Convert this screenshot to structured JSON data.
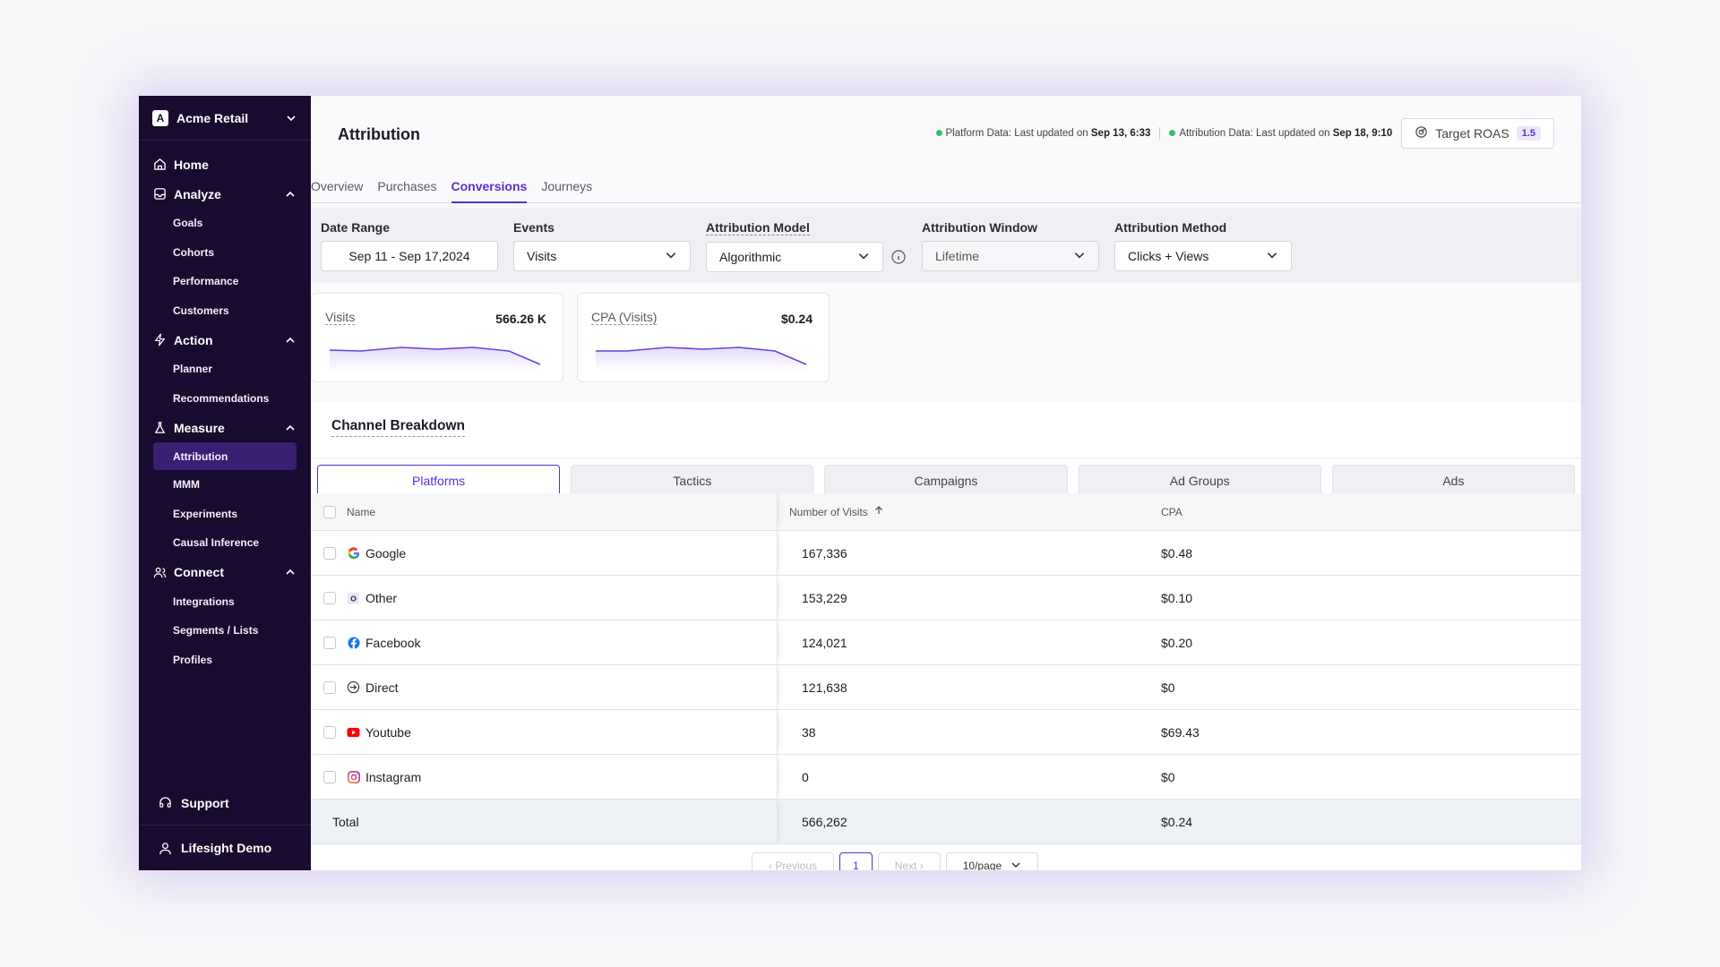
{
  "workspace": {
    "initial": "A",
    "name": "Acme Retail"
  },
  "sidebar": {
    "home": "Home",
    "analyze": {
      "label": "Analyze",
      "items": [
        "Goals",
        "Cohorts",
        "Performance",
        "Customers"
      ]
    },
    "action": {
      "label": "Action",
      "items": [
        "Planner",
        "Recommendations"
      ]
    },
    "measure": {
      "label": "Measure",
      "items": [
        "Attribution",
        "MMM",
        "Experiments",
        "Causal Inference"
      ]
    },
    "connect": {
      "label": "Connect",
      "items": [
        "Integrations",
        "Segments / Lists",
        "Profiles"
      ]
    },
    "support": "Support",
    "user": "Lifesight Demo"
  },
  "header": {
    "title": "Attribution",
    "platform_prefix": "Platform Data: Last updated on",
    "platform_date": "Sep 13, 6:33",
    "attribution_prefix": "Attribution Data: Last updated on",
    "attribution_date": "Sep 18, 9:10",
    "roas_label": "Target ROAS",
    "roas_value": "1.5"
  },
  "tabs": [
    "Overview",
    "Purchases",
    "Conversions",
    "Journeys"
  ],
  "filters": {
    "date_range": {
      "label": "Date Range",
      "value": "Sep 11 - Sep 17,2024"
    },
    "events": {
      "label": "Events",
      "value": "Visits"
    },
    "model": {
      "label": "Attribution Model",
      "value": "Algorithmic"
    },
    "window": {
      "label": "Attribution Window",
      "value": "Lifetime"
    },
    "method": {
      "label": "Attribution Method",
      "value": "Clicks + Views"
    }
  },
  "cards": [
    {
      "label": "Visits",
      "value": "566.26 K"
    },
    {
      "label": "CPA (Visits)",
      "value": "$0.24"
    }
  ],
  "breakdown": {
    "title": "Channel Breakdown",
    "tabs": [
      "Platforms",
      "Tactics",
      "Campaigns",
      "Ad Groups",
      "Ads"
    ],
    "columns": [
      "Name",
      "Number of Visits",
      "CPA"
    ],
    "rows": [
      {
        "name": "Google",
        "visits": "167,336",
        "cpa": "$0.48"
      },
      {
        "name": "Other",
        "visits": "153,229",
        "cpa": "$0.10"
      },
      {
        "name": "Facebook",
        "visits": "124,021",
        "cpa": "$0.20"
      },
      {
        "name": "Direct",
        "visits": "121,638",
        "cpa": "$0"
      },
      {
        "name": "Youtube",
        "visits": "38",
        "cpa": "$69.43"
      },
      {
        "name": "Instagram",
        "visits": "0",
        "cpa": "$0"
      }
    ],
    "total": {
      "label": "Total",
      "visits": "566,262",
      "cpa": "$0.24"
    }
  },
  "pager": {
    "prev": "Previous",
    "page": "1",
    "next": "Next",
    "size": "10/page"
  },
  "colors": {
    "accent": "#5b2fd0",
    "sidebar": "#190a30",
    "status": "#2fc15e"
  }
}
